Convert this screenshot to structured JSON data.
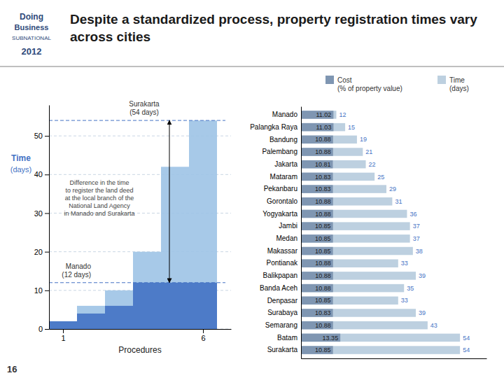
{
  "title": "Despite a standardized process, property registration times vary across cities",
  "annotations": [
    "Doing",
    "Business",
    "SUBNATIONAL",
    "2012",
    "16"
  ],
  "chart_data": [
    {
      "type": "bar",
      "x": [
        1,
        2,
        3,
        4,
        5,
        6
      ],
      "xlim": [
        0.5,
        7.0
      ],
      "xticks": [
        1,
        6
      ],
      "ylim": [
        0,
        58
      ],
      "yticks": [
        0,
        10,
        20,
        30,
        40,
        50
      ],
      "xlabel": "Procedures",
      "ylabel": [
        "Time",
        "(days)"
      ],
      "grid": true,
      "stacked": false,
      "series": [
        {
          "color": "#9DC3E6",
          "values": [
            2,
            6,
            10,
            20,
            42,
            54
          ]
        },
        {
          "color": "#4472C4",
          "values": [
            2,
            4,
            6,
            12,
            12,
            12
          ]
        }
      ],
      "annotations": [
        "Surakarta\n(54 days)",
        "Manado\n(12 days)",
        "Difference in the time\nto register the land deed\nat the local branch of the\nNational Land Agency\nin Manado and Surakarta"
      ]
    },
    {
      "type": "bar",
      "orientation": "horizontal",
      "categories": [
        "Manado",
        "Palangka Raya",
        "Bandung",
        "Palembang",
        "Jakarta",
        "Mataram",
        "Pekanbaru",
        "Gorontalo",
        "Yogyakarta",
        "Jambi",
        "Medan",
        "Makassar",
        "Pontianak",
        "Balikpapan",
        "Banda Aceh",
        "Denpasar",
        "Surabaya",
        "Semarang",
        "Batam",
        "Surakarta"
      ],
      "xlim": [
        0,
        63
      ],
      "tick_labels": "y",
      "data_labels": true,
      "stacked": false,
      "legend": "top-right",
      "series": [
        {
          "name": "Cost\n(% of property value)",
          "color": "#7F96B2",
          "values": [
            11.02,
            11.03,
            10.88,
            10.88,
            10.81,
            10.83,
            10.83,
            10.88,
            10.88,
            10.85,
            10.85,
            10.85,
            10.88,
            10.88,
            10.88,
            10.85,
            10.83,
            10.88,
            13.35,
            10.85
          ]
        },
        {
          "name": "Time\n(days)",
          "color": "#BDD0E0",
          "values": [
            12,
            15,
            19,
            21,
            22,
            25,
            29,
            31,
            36,
            37,
            37,
            38,
            33,
            39,
            35,
            33,
            39,
            43,
            54,
            54
          ]
        }
      ]
    }
  ]
}
